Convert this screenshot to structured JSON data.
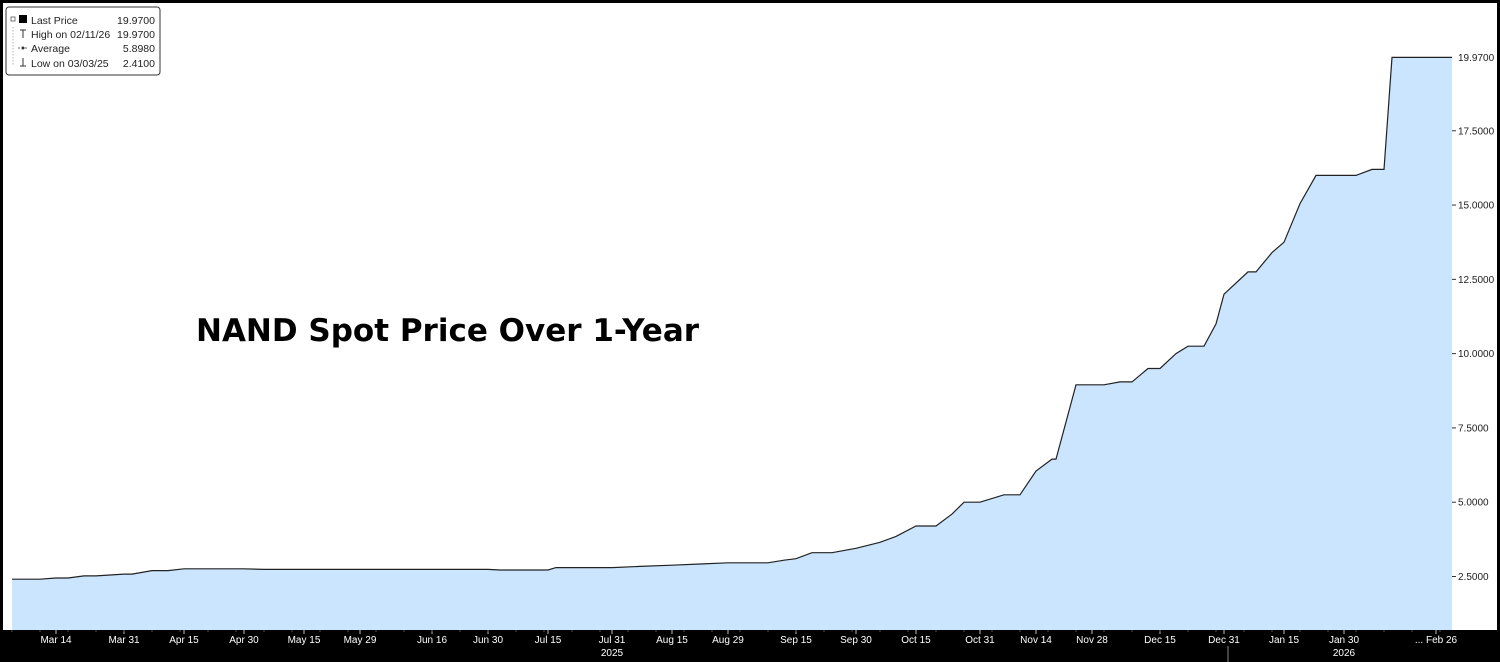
{
  "chart_data": {
    "type": "area",
    "title": "NAND Spot Price Over 1-Year",
    "ylim": [
      0.7,
      21.8
    ],
    "yticks": [
      "2.5000",
      "5.0000",
      "7.5000",
      "10.0000",
      "12.5000",
      "15.0000",
      "17.5000"
    ],
    "last_price_label": "19.9700",
    "xticks": [
      "Mar 14",
      "Mar 31",
      "Apr 15",
      "Apr 30",
      "May 15",
      "May 29",
      "Jun 16",
      "Jun 30",
      "Jul 15",
      "Jul 31",
      "Aug 15",
      "Aug 29",
      "Sep 15",
      "Sep 30",
      "Oct 15",
      "Oct 31",
      "Nov 14",
      "Nov 28",
      "Dec 15",
      "Dec 31",
      "Jan 15",
      "Jan 30",
      "... Feb 26"
    ],
    "year_labels": [
      "2025",
      "2026"
    ],
    "legend": [
      {
        "label": "Last Price",
        "value": "19.9700"
      },
      {
        "label": "High on 02/11/26",
        "value": "19.9700"
      },
      {
        "label": "Average",
        "value": "5.8980"
      },
      {
        "label": "Low on 03/03/25",
        "value": "2.4100"
      }
    ],
    "series": [
      {
        "x": [
          "2025-03-03",
          "2025-03-06",
          "2025-03-10",
          "2025-03-14",
          "2025-03-17",
          "2025-03-21",
          "2025-03-24",
          "2025-03-31",
          "2025-04-02",
          "2025-04-07",
          "2025-04-11",
          "2025-04-15",
          "2025-04-30",
          "2025-05-05",
          "2025-05-15",
          "2025-05-29",
          "2025-06-16",
          "2025-06-30",
          "2025-07-03",
          "2025-07-10",
          "2025-07-15",
          "2025-07-17",
          "2025-07-24",
          "2025-07-31",
          "2025-08-07",
          "2025-08-15",
          "2025-08-22",
          "2025-08-29",
          "2025-09-08",
          "2025-09-12",
          "2025-09-15",
          "2025-09-19",
          "2025-09-24",
          "2025-09-30",
          "2025-10-06",
          "2025-10-10",
          "2025-10-15",
          "2025-10-20",
          "2025-10-24",
          "2025-10-27",
          "2025-10-31",
          "2025-11-06",
          "2025-11-10",
          "2025-11-14",
          "2025-11-18",
          "2025-11-19",
          "2025-11-24",
          "2025-11-28",
          "2025-12-01",
          "2025-12-05",
          "2025-12-08",
          "2025-12-12",
          "2025-12-15",
          "2025-12-19",
          "2025-12-22",
          "2025-12-26",
          "2025-12-29",
          "2025-12-31",
          "2026-01-06",
          "2026-01-08",
          "2026-01-12",
          "2026-01-15",
          "2026-01-19",
          "2026-01-23",
          "2026-01-30",
          "2026-02-02",
          "2026-02-06",
          "2026-02-09",
          "2026-02-11",
          "2026-02-26"
        ],
        "values": [
          2.41,
          2.41,
          2.41,
          2.45,
          2.45,
          2.52,
          2.52,
          2.58,
          2.58,
          2.7,
          2.7,
          2.76,
          2.76,
          2.74,
          2.74,
          2.74,
          2.74,
          2.74,
          2.72,
          2.72,
          2.72,
          2.8,
          2.8,
          2.8,
          2.84,
          2.88,
          2.92,
          2.96,
          2.96,
          3.05,
          3.1,
          3.3,
          3.3,
          3.45,
          3.65,
          3.85,
          4.2,
          4.2,
          4.6,
          5.0,
          5.0,
          5.25,
          5.25,
          6.05,
          6.45,
          6.45,
          8.95,
          8.95,
          8.95,
          9.05,
          9.05,
          9.5,
          9.5,
          10.0,
          10.25,
          10.25,
          11.0,
          12.0,
          12.75,
          12.75,
          13.4,
          13.75,
          15.05,
          16.0,
          16.0,
          16.0,
          16.2,
          16.2,
          19.97,
          19.97
        ]
      }
    ]
  },
  "colors": {
    "background": "#000000",
    "plot_background": "#ffffff",
    "area_fill": "#cce5ff",
    "line": "#222222",
    "axis_text": "#ffffff"
  }
}
